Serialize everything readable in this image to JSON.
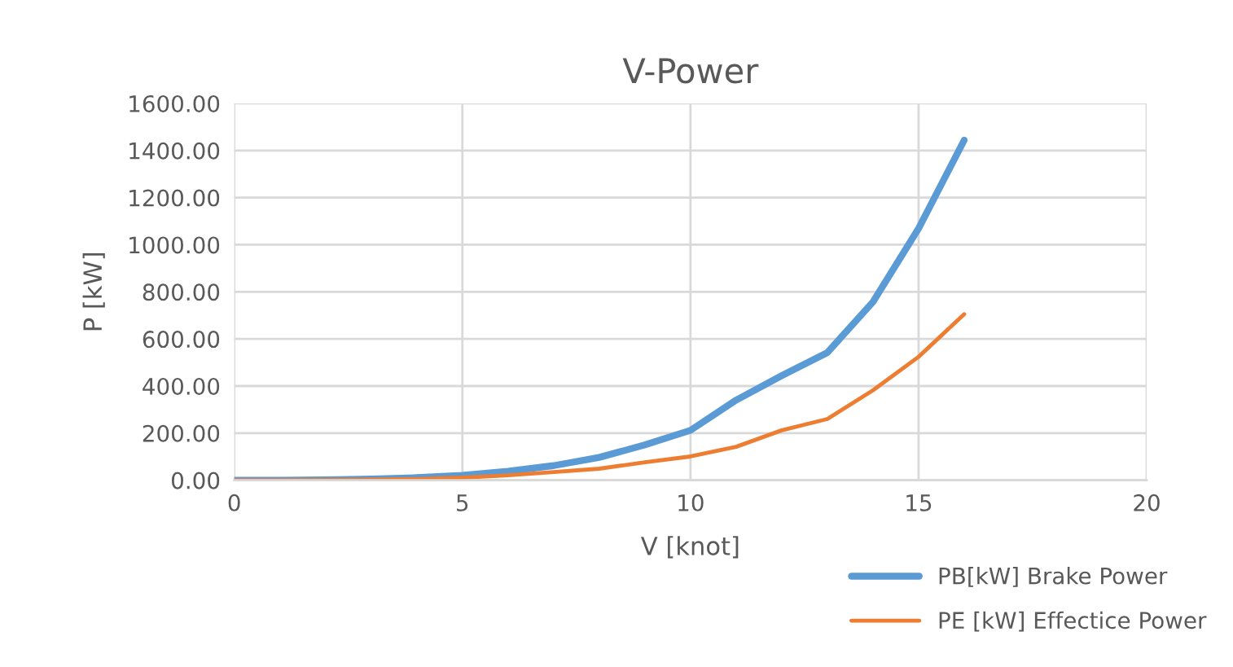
{
  "chart_data": {
    "type": "line",
    "title": "V-Power",
    "xlabel": "V [knot]",
    "ylabel": "P [kW]",
    "x": [
      0,
      1,
      2,
      3,
      4,
      5,
      6,
      7,
      8,
      9,
      10,
      11,
      12,
      13,
      14,
      15,
      16
    ],
    "series": [
      {
        "name": "PB[kW] Brake Power",
        "color": "#5b9bd5",
        "values": [
          0,
          0,
          2,
          5,
          11,
          21,
          38,
          62,
          97,
          150,
          212,
          340,
          444,
          542,
          757,
          1069,
          1444
        ]
      },
      {
        "name": "PE [kW] Effectice Power",
        "color": "#ed7d31",
        "values": [
          0,
          0,
          1,
          3,
          5,
          11,
          21,
          35,
          49,
          76,
          101,
          142,
          212,
          260,
          382,
          524,
          705
        ]
      }
    ],
    "xlim": [
      0,
      20
    ],
    "xticks": [
      0,
      5,
      10,
      15,
      20
    ],
    "ylim": [
      0,
      1600
    ],
    "yticks": [
      {
        "value": 0,
        "label": "0.00"
      },
      {
        "value": 200,
        "label": "200.00"
      },
      {
        "value": 400,
        "label": "400.00"
      },
      {
        "value": 600,
        "label": "600.00"
      },
      {
        "value": 800,
        "label": "800.00"
      },
      {
        "value": 1000,
        "label": "1000.00"
      },
      {
        "value": 1200,
        "label": "1200.00"
      },
      {
        "value": 1400,
        "label": "1400.00"
      },
      {
        "value": 1600,
        "label": "1600.00"
      }
    ],
    "grid": true,
    "legend": "bottom right",
    "marker": "none",
    "line_style": "solid"
  }
}
